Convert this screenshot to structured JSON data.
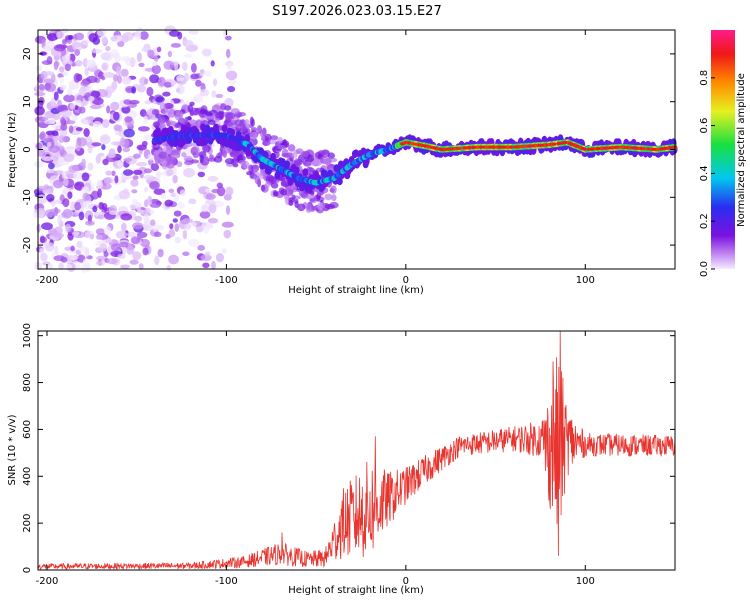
{
  "title": "S197.2026.023.03.15.E27",
  "colors": {
    "snr_line": "#e8332e",
    "axis": "#000000",
    "background": "#ffffff"
  },
  "chart_data": [
    {
      "type": "heatmap",
      "name": "spectrogram",
      "xlabel": "Height of straight line (km)",
      "ylabel": "Frequency (Hz)",
      "xlim": [
        -205,
        150
      ],
      "ylim": [
        -25,
        25
      ],
      "xticks": [
        -200,
        -100,
        0,
        100
      ],
      "yticks": [
        -20,
        -10,
        0,
        10,
        20
      ],
      "colorbar": {
        "label": "Normalized spectral amplitude",
        "range": [
          0,
          1
        ],
        "ticks": [
          "0.0",
          "0.2",
          "0.4",
          "0.6",
          "0.8"
        ],
        "colormap": "rainbow (white-violet-blue-cyan-green-yellow-orange-red-pink)"
      },
      "ridge": [
        {
          "x": -140,
          "f": 2
        },
        {
          "x": -120,
          "f": 3
        },
        {
          "x": -100,
          "f": 3
        },
        {
          "x": -88,
          "f": 1
        },
        {
          "x": -80,
          "f": -2
        },
        {
          "x": -70,
          "f": -4
        },
        {
          "x": -60,
          "f": -6
        },
        {
          "x": -50,
          "f": -7
        },
        {
          "x": -40,
          "f": -6
        },
        {
          "x": -30,
          "f": -3
        },
        {
          "x": -20,
          "f": -1
        },
        {
          "x": -10,
          "f": 0
        },
        {
          "x": 0,
          "f": 1.5
        },
        {
          "x": 10,
          "f": 0.8
        },
        {
          "x": 20,
          "f": 0
        },
        {
          "x": 40,
          "f": 0.5
        },
        {
          "x": 60,
          "f": 0.5
        },
        {
          "x": 80,
          "f": 1
        },
        {
          "x": 90,
          "f": 1.5
        },
        {
          "x": 100,
          "f": 0
        },
        {
          "x": 120,
          "f": 0.5
        },
        {
          "x": 140,
          "f": 0
        },
        {
          "x": 150,
          "f": 0.5
        }
      ],
      "noise_region": {
        "x_from": -205,
        "x_to": -95
      }
    },
    {
      "type": "line",
      "name": "snr",
      "xlabel": "Height of straight line (km)",
      "ylabel": "SNR (10 * v/v)",
      "xlim": [
        -205,
        150
      ],
      "ylim": [
        0,
        1020
      ],
      "xticks": [
        -200,
        -100,
        0,
        100
      ],
      "yticks": [
        0,
        200,
        400,
        600,
        800,
        1000
      ],
      "envelope": [
        {
          "x": -205,
          "mean": 15,
          "amp": 12
        },
        {
          "x": -120,
          "mean": 18,
          "amp": 14
        },
        {
          "x": -90,
          "mean": 35,
          "amp": 25
        },
        {
          "x": -70,
          "mean": 70,
          "amp": 50
        },
        {
          "x": -55,
          "mean": 45,
          "amp": 35
        },
        {
          "x": -45,
          "mean": 50,
          "amp": 40
        },
        {
          "x": -35,
          "mean": 200,
          "amp": 150
        },
        {
          "x": -20,
          "mean": 260,
          "amp": 220
        },
        {
          "x": -10,
          "mean": 300,
          "amp": 120
        },
        {
          "x": 0,
          "mean": 360,
          "amp": 80
        },
        {
          "x": 15,
          "mean": 450,
          "amp": 60
        },
        {
          "x": 30,
          "mean": 530,
          "amp": 45
        },
        {
          "x": 60,
          "mean": 560,
          "amp": 55
        },
        {
          "x": 75,
          "mean": 560,
          "amp": 80
        },
        {
          "x": 80,
          "mean": 520,
          "amp": 250
        },
        {
          "x": 85,
          "mean": 520,
          "amp": 430
        },
        {
          "x": 90,
          "mean": 550,
          "amp": 150
        },
        {
          "x": 100,
          "mean": 535,
          "amp": 50
        },
        {
          "x": 150,
          "mean": 530,
          "amp": 45
        }
      ],
      "peaks": [
        {
          "x": 86,
          "y": 1020
        },
        {
          "x": 82,
          "y": 890
        },
        {
          "x": 85,
          "y": 60
        },
        {
          "x": -17,
          "y": 570
        },
        {
          "x": -69,
          "y": 160
        }
      ]
    }
  ]
}
